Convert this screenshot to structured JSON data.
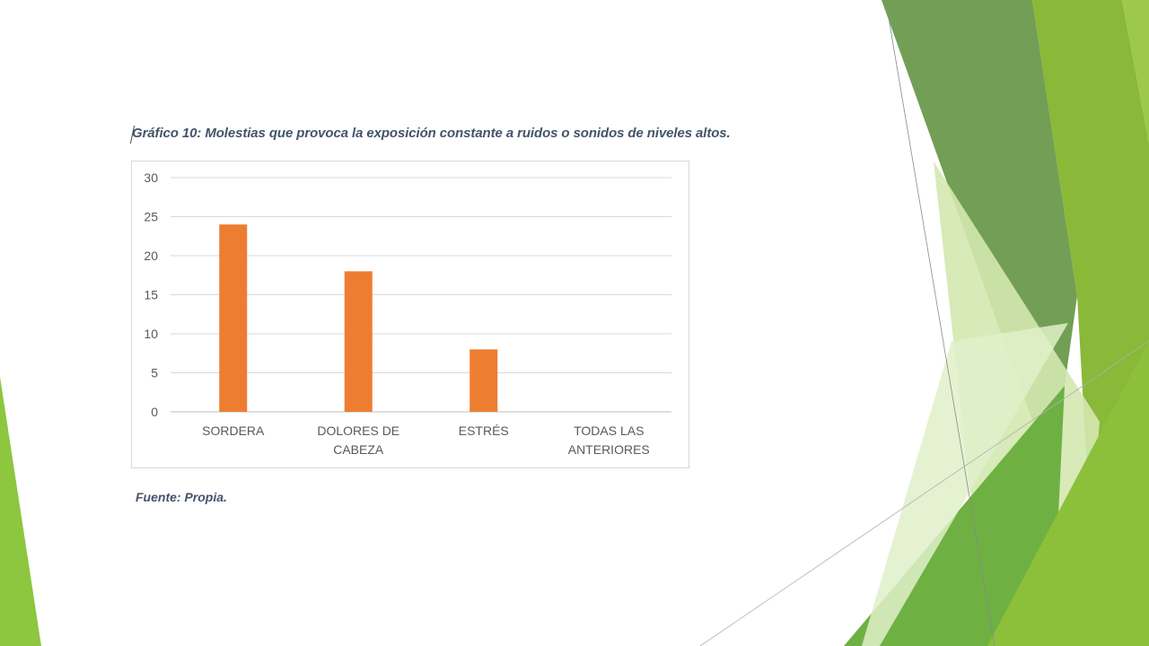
{
  "slide": {
    "title": "Gráfico 10: Molestias que provoca la exposición constante a ruidos o sonidos de niveles altos.",
    "source": "Fuente: Propia.",
    "accent_colors": [
      "#8dc63f",
      "#6a9f3a",
      "#b5d97a",
      "#dcedc1"
    ]
  },
  "chart_data": {
    "type": "bar",
    "title": "Gráfico 10: Molestias que provoca la exposición constante a ruidos o sonidos de niveles altos.",
    "categories": [
      "SORDERA",
      "DOLORES DE CABEZA",
      "ESTRÉS",
      "TODAS LAS ANTERIORES"
    ],
    "category_lines": [
      [
        "SORDERA"
      ],
      [
        "DOLORES DE",
        "CABEZA"
      ],
      [
        "ESTRÉS"
      ],
      [
        "TODAS LAS",
        "ANTERIORES"
      ]
    ],
    "values": [
      24,
      18,
      8,
      0
    ],
    "ylim": [
      0,
      30
    ],
    "yticks": [
      0,
      5,
      10,
      15,
      20,
      25,
      30
    ],
    "grid": true,
    "legend": "none",
    "bar_color": "#ed7d31",
    "xlabel": "",
    "ylabel": ""
  }
}
